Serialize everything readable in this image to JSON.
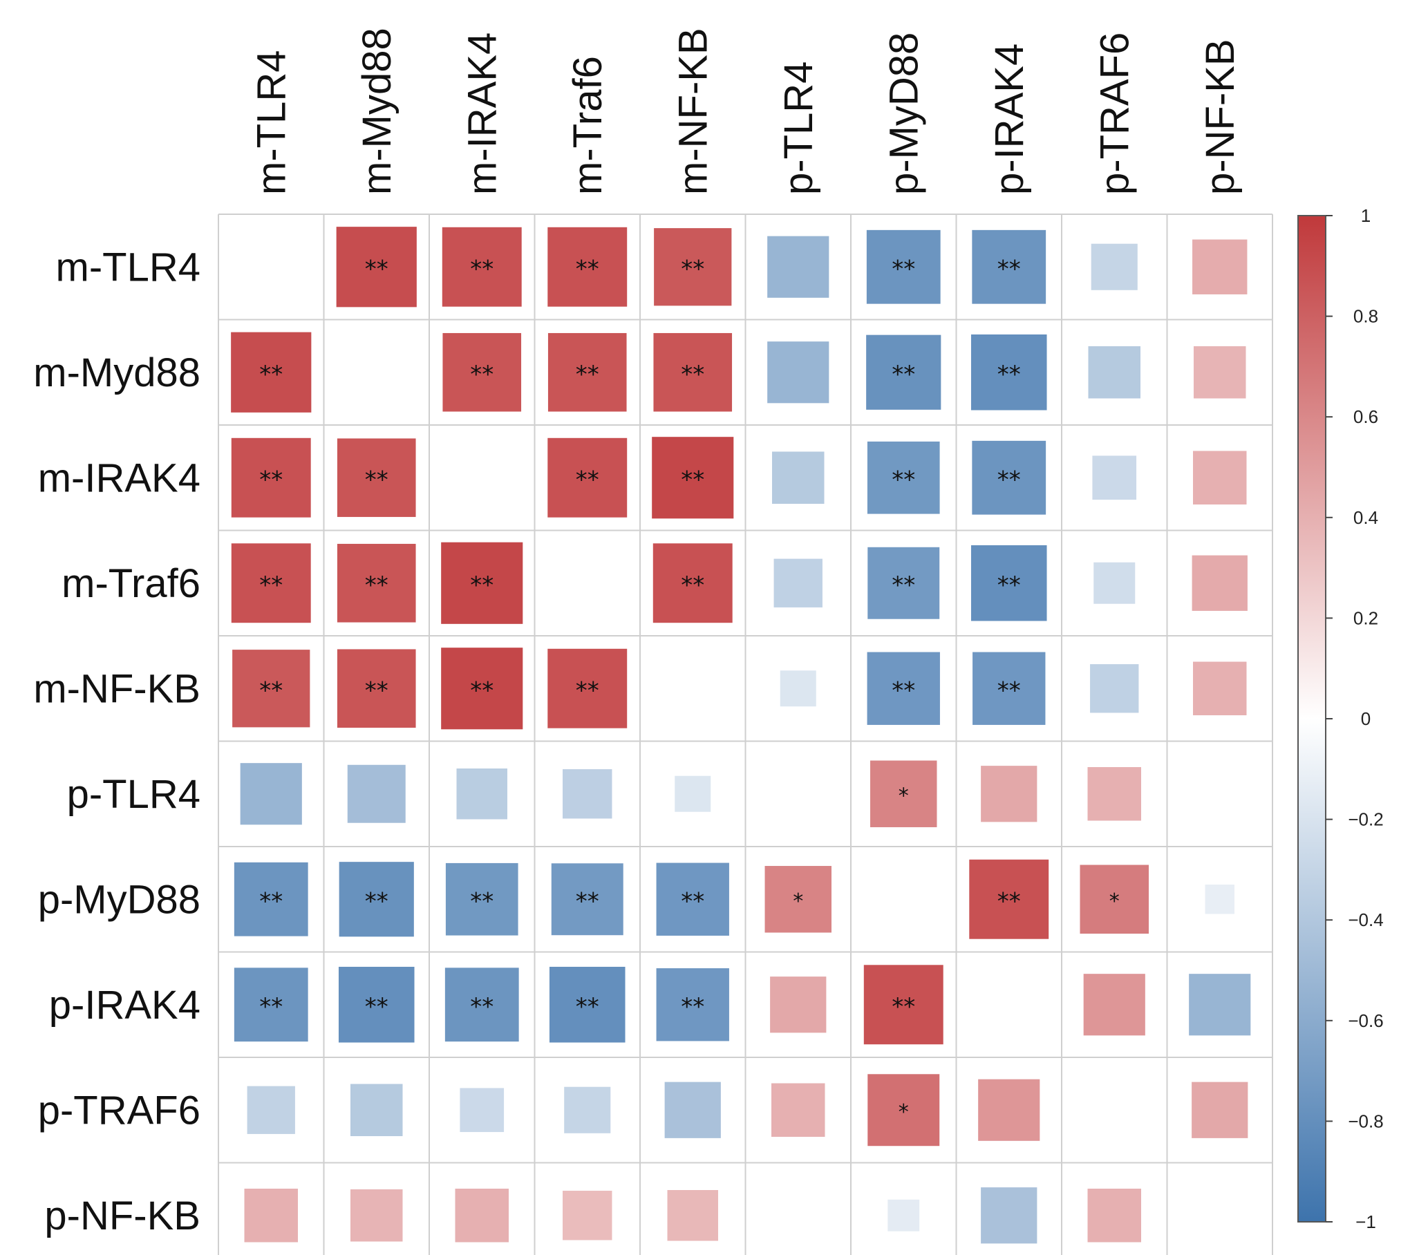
{
  "chart_data": {
    "type": "heatmap",
    "subtype": "correlation-matrix",
    "variables": [
      "m-TLR4",
      "m-Myd88",
      "m-IRAK4",
      "m-Traf6",
      "m-NF-KB",
      "p-TLR4",
      "p-MyD88",
      "p-IRAK4",
      "p-TRAF6",
      "p-NF-KB"
    ],
    "values": [
      [
        null,
        0.9,
        0.88,
        0.88,
        0.84,
        -0.53,
        -0.76,
        -0.76,
        -0.3,
        0.42
      ],
      [
        0.9,
        null,
        0.86,
        0.86,
        0.86,
        -0.53,
        -0.78,
        -0.8,
        -0.38,
        0.38
      ],
      [
        0.88,
        0.86,
        null,
        0.88,
        0.93,
        -0.38,
        -0.73,
        -0.76,
        -0.27,
        0.4
      ],
      [
        0.88,
        0.86,
        0.93,
        null,
        0.88,
        -0.33,
        -0.72,
        -0.8,
        -0.24,
        0.43
      ],
      [
        0.84,
        0.86,
        0.93,
        0.88,
        null,
        -0.18,
        -0.74,
        -0.74,
        -0.33,
        0.4
      ],
      [
        -0.53,
        -0.47,
        -0.36,
        -0.34,
        -0.18,
        null,
        0.62,
        0.44,
        0.4,
        0.0
      ],
      [
        -0.76,
        -0.78,
        -0.73,
        -0.72,
        -0.74,
        0.62,
        null,
        0.88,
        0.66,
        -0.12
      ],
      [
        -0.76,
        -0.8,
        -0.76,
        -0.8,
        -0.74,
        0.44,
        0.88,
        null,
        0.53,
        -0.53
      ],
      [
        -0.32,
        -0.38,
        -0.27,
        -0.3,
        -0.44,
        0.4,
        0.72,
        0.53,
        null,
        0.44
      ],
      [
        0.4,
        0.38,
        0.4,
        0.34,
        0.36,
        0.0,
        -0.14,
        -0.44,
        0.4,
        null
      ]
    ],
    "significance": [
      [
        "",
        "**",
        "**",
        "**",
        "**",
        "",
        "**",
        "**",
        "",
        ""
      ],
      [
        "**",
        "",
        "**",
        "**",
        "**",
        "",
        "**",
        "**",
        "",
        ""
      ],
      [
        "**",
        "**",
        "",
        "**",
        "**",
        "",
        "**",
        "**",
        "",
        ""
      ],
      [
        "**",
        "**",
        "**",
        "",
        "**",
        "",
        "**",
        "**",
        "",
        ""
      ],
      [
        "**",
        "**",
        "**",
        "**",
        "",
        "",
        "**",
        "**",
        "",
        ""
      ],
      [
        "",
        "",
        "",
        "",
        "",
        "",
        "*",
        "",
        "",
        ""
      ],
      [
        "**",
        "**",
        "**",
        "**",
        "**",
        "*",
        "",
        "**",
        "*",
        ""
      ],
      [
        "**",
        "**",
        "**",
        "**",
        "**",
        "",
        "**",
        "",
        "",
        ""
      ],
      [
        "",
        "",
        "",
        "",
        "",
        "",
        "*",
        "",
        "",
        ""
      ],
      [
        "",
        "",
        "",
        "",
        "",
        "",
        "",
        "",
        "",
        ""
      ]
    ],
    "colorbar": {
      "range": [
        -1,
        1
      ],
      "ticks": [
        "1",
        "0.8",
        "0.6",
        "0.4",
        "0.2",
        "0",
        "−0.2",
        "−0.4",
        "−0.6",
        "−0.8",
        "−1"
      ],
      "colors": {
        "positive": "#c0393b",
        "neutral": "#ffffff",
        "negative": "#3d73ac"
      }
    },
    "title": "",
    "xlabel": "",
    "ylabel": "",
    "legend": "right"
  }
}
